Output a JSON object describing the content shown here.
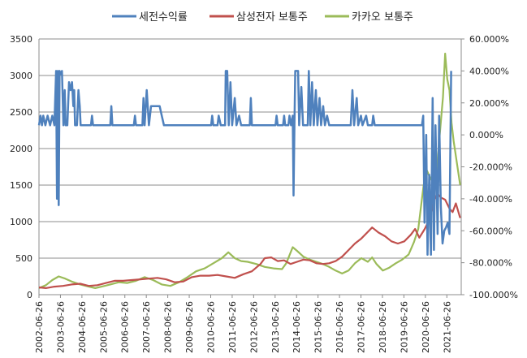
{
  "chart_data": {
    "type": "line",
    "legend_position": "top-center",
    "grid": {
      "horizontal": true,
      "vertical": false
    },
    "left_axis": {
      "range": [
        0,
        3500
      ],
      "ticks": [
        0,
        500,
        1000,
        1500,
        2000,
        2500,
        3000,
        3500
      ],
      "tick_labels": [
        "0",
        "500",
        "1000",
        "1500",
        "2000",
        "2500",
        "3000",
        "3500"
      ]
    },
    "right_axis": {
      "range": [
        -1.0,
        0.6
      ],
      "ticks": [
        -1.0,
        -0.8,
        -0.6,
        -0.4,
        -0.2,
        0.0,
        0.2,
        0.4,
        0.6
      ],
      "tick_labels": [
        "-100.000%",
        "-80.000%",
        "-60.000%",
        "-40.000%",
        "-20.000%",
        "0.000%",
        "20.000%",
        "40.000%",
        "60.000%"
      ]
    },
    "x_axis": {
      "range": [
        2002.48,
        2022.15
      ],
      "tick_labels": [
        "2002-06-26",
        "2003-06-26",
        "2004-06-26",
        "2005-06-26",
        "2006-06-26",
        "2007-06-26",
        "2008-06-26",
        "2009-06-26",
        "2010-06-26",
        "2011-06-26",
        "2012-06-26",
        "2013-06-26",
        "2014-06-26",
        "2015-06-26",
        "2016-06-26",
        "2017-06-26",
        "2018-06-26",
        "2019-06-26",
        "2020-06-26",
        "2021-06-26"
      ]
    },
    "series": [
      {
        "name": "세전수익률",
        "axis": "right",
        "color": "#4F81BD",
        "points": [
          [
            2002.48,
            0.06
          ],
          [
            2002.55,
            0.12
          ],
          [
            2002.62,
            0.06
          ],
          [
            2002.68,
            0.12
          ],
          [
            2002.78,
            0.06
          ],
          [
            2002.88,
            0.12
          ],
          [
            2003.0,
            0.06
          ],
          [
            2003.1,
            0.12
          ],
          [
            2003.2,
            0.06
          ],
          [
            2003.28,
            0.4
          ],
          [
            2003.32,
            -0.4
          ],
          [
            2003.36,
            0.4
          ],
          [
            2003.4,
            -0.44
          ],
          [
            2003.44,
            0.4
          ],
          [
            2003.48,
            0.38
          ],
          [
            2003.55,
            0.4
          ],
          [
            2003.62,
            0.06
          ],
          [
            2003.68,
            0.28
          ],
          [
            2003.72,
            0.06
          ],
          [
            2003.8,
            0.06
          ],
          [
            2003.88,
            0.33
          ],
          [
            2003.95,
            0.28
          ],
          [
            2004.02,
            0.33
          ],
          [
            2004.08,
            0.18
          ],
          [
            2004.12,
            0.28
          ],
          [
            2004.16,
            0.06
          ],
          [
            2004.25,
            0.06
          ],
          [
            2004.32,
            0.28
          ],
          [
            2004.38,
            0.18
          ],
          [
            2004.42,
            0.06
          ],
          [
            2004.9,
            0.06
          ],
          [
            2004.95,
            0.12
          ],
          [
            2005.0,
            0.06
          ],
          [
            2005.8,
            0.06
          ],
          [
            2005.85,
            0.18
          ],
          [
            2005.9,
            0.06
          ],
          [
            2006.9,
            0.06
          ],
          [
            2006.95,
            0.12
          ],
          [
            2007.0,
            0.06
          ],
          [
            2007.3,
            0.06
          ],
          [
            2007.35,
            0.23
          ],
          [
            2007.4,
            0.06
          ],
          [
            2007.5,
            0.28
          ],
          [
            2007.6,
            0.06
          ],
          [
            2007.7,
            0.18
          ],
          [
            2008.1,
            0.18
          ],
          [
            2008.2,
            0.12
          ],
          [
            2008.3,
            0.06
          ],
          [
            2010.5,
            0.06
          ],
          [
            2010.55,
            0.12
          ],
          [
            2010.6,
            0.06
          ],
          [
            2010.8,
            0.06
          ],
          [
            2010.85,
            0.12
          ],
          [
            2010.95,
            0.06
          ],
          [
            2011.15,
            0.06
          ],
          [
            2011.18,
            0.4
          ],
          [
            2011.25,
            0.4
          ],
          [
            2011.32,
            0.06
          ],
          [
            2011.4,
            0.33
          ],
          [
            2011.48,
            0.06
          ],
          [
            2011.6,
            0.23
          ],
          [
            2011.68,
            0.06
          ],
          [
            2011.8,
            0.12
          ],
          [
            2011.9,
            0.06
          ],
          [
            2012.3,
            0.06
          ],
          [
            2012.35,
            0.23
          ],
          [
            2012.4,
            0.06
          ],
          [
            2013.5,
            0.06
          ],
          [
            2013.55,
            0.12
          ],
          [
            2013.6,
            0.06
          ],
          [
            2013.85,
            0.06
          ],
          [
            2013.9,
            0.12
          ],
          [
            2013.95,
            0.06
          ],
          [
            2014.1,
            0.06
          ],
          [
            2014.15,
            0.12
          ],
          [
            2014.22,
            0.06
          ],
          [
            2014.3,
            0.12
          ],
          [
            2014.34,
            -0.38
          ],
          [
            2014.38,
            0.06
          ],
          [
            2014.42,
            0.4
          ],
          [
            2014.55,
            0.4
          ],
          [
            2014.6,
            0.06
          ],
          [
            2014.7,
            0.3
          ],
          [
            2014.78,
            0.06
          ],
          [
            2015.0,
            0.06
          ],
          [
            2015.05,
            0.4
          ],
          [
            2015.12,
            0.06
          ],
          [
            2015.2,
            0.33
          ],
          [
            2015.28,
            0.06
          ],
          [
            2015.38,
            0.28
          ],
          [
            2015.45,
            0.06
          ],
          [
            2015.55,
            0.23
          ],
          [
            2015.62,
            0.06
          ],
          [
            2015.72,
            0.18
          ],
          [
            2015.8,
            0.06
          ],
          [
            2015.9,
            0.12
          ],
          [
            2016.0,
            0.06
          ],
          [
            2017.0,
            0.06
          ],
          [
            2017.08,
            0.28
          ],
          [
            2017.16,
            0.06
          ],
          [
            2017.28,
            0.23
          ],
          [
            2017.35,
            0.06
          ],
          [
            2017.48,
            0.12
          ],
          [
            2017.55,
            0.06
          ],
          [
            2017.72,
            0.12
          ],
          [
            2017.8,
            0.06
          ],
          [
            2018.0,
            0.06
          ],
          [
            2018.05,
            0.12
          ],
          [
            2018.12,
            0.06
          ],
          [
            2020.32,
            0.06
          ],
          [
            2020.38,
            0.12
          ],
          [
            2020.44,
            -0.55
          ],
          [
            2020.52,
            0.0
          ],
          [
            2020.58,
            -0.75
          ],
          [
            2020.66,
            -0.25
          ],
          [
            2020.74,
            -0.75
          ],
          [
            2020.82,
            0.23
          ],
          [
            2020.88,
            -0.72
          ],
          [
            2020.95,
            0.06
          ],
          [
            2021.05,
            -0.62
          ],
          [
            2021.12,
            0.12
          ],
          [
            2021.2,
            -0.45
          ],
          [
            2021.28,
            -0.68
          ],
          [
            2021.36,
            -0.6
          ],
          [
            2021.44,
            -0.58
          ],
          [
            2021.52,
            -0.55
          ],
          [
            2021.6,
            -0.62
          ],
          [
            2021.68,
            0.4
          ]
        ]
      },
      {
        "name": "삼성전자 보통주",
        "axis": "left",
        "color": "#C0504D",
        "points": [
          [
            2002.48,
            100
          ],
          [
            2002.8,
            90
          ],
          [
            2003.2,
            110
          ],
          [
            2003.6,
            120
          ],
          [
            2004.0,
            140
          ],
          [
            2004.4,
            150
          ],
          [
            2004.8,
            120
          ],
          [
            2005.2,
            130
          ],
          [
            2005.6,
            160
          ],
          [
            2006.0,
            190
          ],
          [
            2006.4,
            190
          ],
          [
            2006.8,
            200
          ],
          [
            2007.2,
            210
          ],
          [
            2007.6,
            220
          ],
          [
            2008.0,
            230
          ],
          [
            2008.4,
            210
          ],
          [
            2008.8,
            170
          ],
          [
            2009.2,
            180
          ],
          [
            2009.6,
            240
          ],
          [
            2010.0,
            260
          ],
          [
            2010.4,
            260
          ],
          [
            2010.8,
            270
          ],
          [
            2011.2,
            250
          ],
          [
            2011.6,
            230
          ],
          [
            2012.0,
            280
          ],
          [
            2012.4,
            320
          ],
          [
            2012.8,
            420
          ],
          [
            2013.0,
            500
          ],
          [
            2013.3,
            510
          ],
          [
            2013.6,
            460
          ],
          [
            2013.9,
            470
          ],
          [
            2014.2,
            420
          ],
          [
            2014.5,
            450
          ],
          [
            2014.8,
            480
          ],
          [
            2015.1,
            470
          ],
          [
            2015.4,
            430
          ],
          [
            2015.7,
            420
          ],
          [
            2016.0,
            430
          ],
          [
            2016.3,
            460
          ],
          [
            2016.6,
            520
          ],
          [
            2016.9,
            610
          ],
          [
            2017.2,
            700
          ],
          [
            2017.5,
            770
          ],
          [
            2017.8,
            860
          ],
          [
            2018.0,
            920
          ],
          [
            2018.3,
            850
          ],
          [
            2018.6,
            800
          ],
          [
            2018.9,
            730
          ],
          [
            2019.2,
            700
          ],
          [
            2019.5,
            730
          ],
          [
            2019.8,
            820
          ],
          [
            2020.0,
            900
          ],
          [
            2020.2,
            780
          ],
          [
            2020.45,
            900
          ],
          [
            2020.7,
            1050
          ],
          [
            2020.9,
            1300
          ],
          [
            2021.05,
            1380
          ],
          [
            2021.2,
            1330
          ],
          [
            2021.4,
            1300
          ],
          [
            2021.6,
            1180
          ],
          [
            2021.75,
            1130
          ],
          [
            2021.9,
            1250
          ],
          [
            2022.1,
            1050
          ]
        ]
      },
      {
        "name": "카카오 보통주",
        "axis": "left",
        "color": "#9BBB59",
        "points": [
          [
            2002.48,
            90
          ],
          [
            2002.8,
            130
          ],
          [
            2003.1,
            200
          ],
          [
            2003.4,
            250
          ],
          [
            2003.7,
            220
          ],
          [
            2004.0,
            180
          ],
          [
            2004.4,
            140
          ],
          [
            2004.8,
            110
          ],
          [
            2005.1,
            90
          ],
          [
            2005.4,
            110
          ],
          [
            2005.8,
            140
          ],
          [
            2006.2,
            170
          ],
          [
            2006.6,
            160
          ],
          [
            2007.0,
            190
          ],
          [
            2007.4,
            240
          ],
          [
            2007.8,
            200
          ],
          [
            2008.2,
            140
          ],
          [
            2008.6,
            120
          ],
          [
            2009.0,
            170
          ],
          [
            2009.4,
            240
          ],
          [
            2009.8,
            320
          ],
          [
            2010.2,
            360
          ],
          [
            2010.6,
            430
          ],
          [
            2011.0,
            500
          ],
          [
            2011.3,
            580
          ],
          [
            2011.6,
            500
          ],
          [
            2011.9,
            460
          ],
          [
            2012.2,
            450
          ],
          [
            2012.6,
            420
          ],
          [
            2013.0,
            380
          ],
          [
            2013.4,
            360
          ],
          [
            2013.8,
            350
          ],
          [
            2014.0,
            430
          ],
          [
            2014.3,
            650
          ],
          [
            2014.5,
            600
          ],
          [
            2014.8,
            520
          ],
          [
            2015.1,
            480
          ],
          [
            2015.4,
            450
          ],
          [
            2015.7,
            420
          ],
          [
            2016.0,
            380
          ],
          [
            2016.3,
            330
          ],
          [
            2016.6,
            290
          ],
          [
            2016.9,
            330
          ],
          [
            2017.2,
            430
          ],
          [
            2017.5,
            500
          ],
          [
            2017.8,
            450
          ],
          [
            2018.0,
            510
          ],
          [
            2018.2,
            420
          ],
          [
            2018.5,
            330
          ],
          [
            2018.8,
            370
          ],
          [
            2019.1,
            430
          ],
          [
            2019.4,
            480
          ],
          [
            2019.7,
            550
          ],
          [
            2019.95,
            720
          ],
          [
            2020.15,
            900
          ],
          [
            2020.4,
            1500
          ],
          [
            2020.55,
            1700
          ],
          [
            2020.7,
            1600
          ],
          [
            2020.9,
            1500
          ],
          [
            2021.0,
            1650
          ],
          [
            2021.15,
            2200
          ],
          [
            2021.3,
            2700
          ],
          [
            2021.4,
            3300
          ],
          [
            2021.5,
            2950
          ],
          [
            2021.6,
            2800
          ],
          [
            2021.7,
            2350
          ],
          [
            2021.8,
            2100
          ],
          [
            2021.95,
            1800
          ],
          [
            2022.1,
            1500
          ]
        ]
      }
    ]
  }
}
